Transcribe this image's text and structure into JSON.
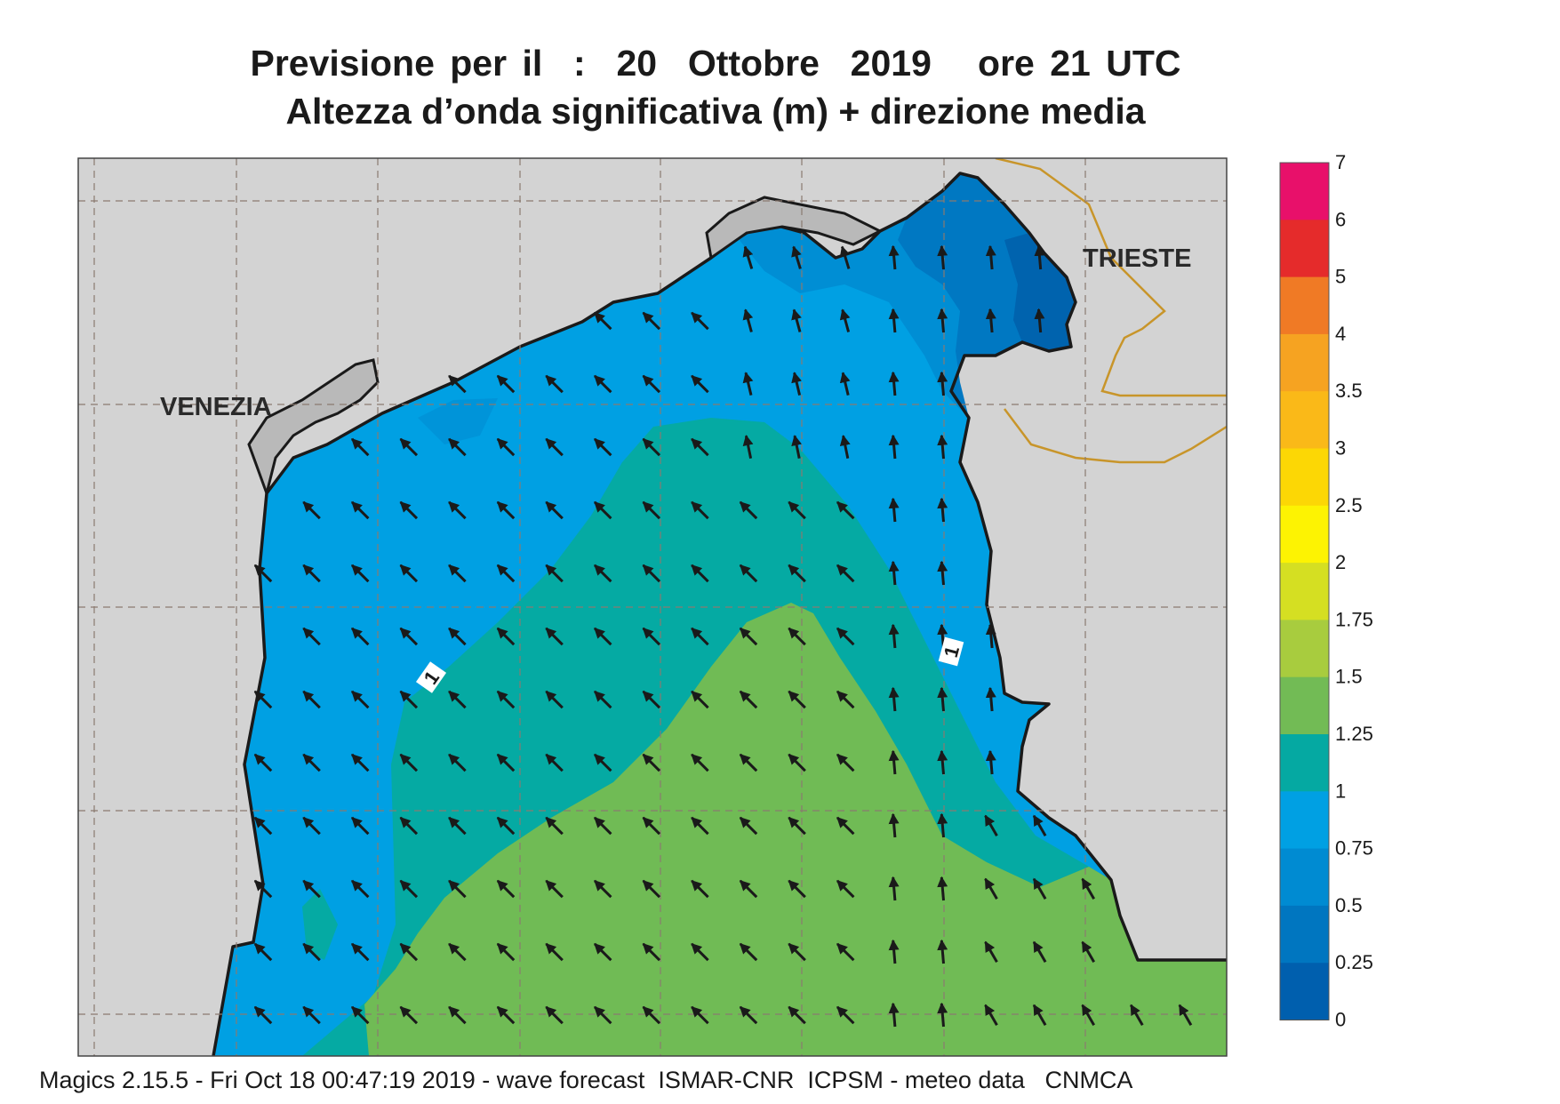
{
  "title_line1": "Previsione per il  :  20  Ottobre  2019   ore 21 UTC",
  "title_line2": "Altezza d’onda significativa (m) + direzione media",
  "cities": [
    {
      "name": "VENEZIA"
    },
    {
      "name": "TRIESTE"
    }
  ],
  "contour_labels": [
    "1",
    "1"
  ],
  "legend": {
    "ticks": [
      "7",
      "6",
      "5",
      "4",
      "3.5",
      "3",
      "2.5",
      "2",
      "1.75",
      "1.5",
      "1.25",
      "1",
      "0.75",
      "0.5",
      "0.25",
      "0"
    ],
    "colors": [
      "#e8106a",
      "#e52b2b",
      "#f07a25",
      "#f6a321",
      "#fab918",
      "#fcd705",
      "#fdf302",
      "#d5df22",
      "#a8cc3e",
      "#72bb55",
      "#05a9a2",
      "#00a0e3",
      "#008bd2",
      "#0076c0",
      "#005fae"
    ]
  },
  "chart_data": {
    "type": "map",
    "variable": "Altezza d’onda significativa (m) + direzione media",
    "color_scale_levels": [
      0,
      0.25,
      0.5,
      0.75,
      1,
      1.25,
      1.5,
      1.75,
      2,
      2.5,
      3,
      3.5,
      4,
      5,
      6,
      7
    ],
    "mean_wave_direction": "towards north-west"
  },
  "colors": {
    "land": "#d3d3d3",
    "coast": "#1a1a1a",
    "border": "#c8952a",
    "band_0_25": "#0063ae",
    "band_0_5": "#0078c2",
    "band_0_75": "#008ed4",
    "band_1": "#00a0e3",
    "band_1_25": "#05aaa3",
    "band_1_5": "#70bb55"
  },
  "footer": "Magics 2.15.5 - Fri Oct 18 00:47:19 2019 - wave forecast  ISMAR-CNR  ICPSM - meteo data   CNMCA"
}
